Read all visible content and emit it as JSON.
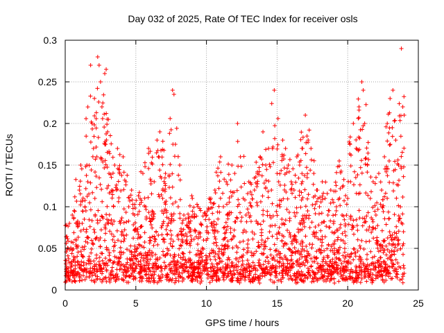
{
  "chart_data": {
    "type": "scatter",
    "title": "Day 032 of 2025, Rate Of TEC Index for receiver osls",
    "xlabel": "GPS time / hours",
    "ylabel": "ROTI / TECUs",
    "xlim": [
      0,
      25
    ],
    "ylim": [
      0,
      0.3
    ],
    "xticks": [
      0,
      5,
      10,
      15,
      20,
      25
    ],
    "yticks": [
      0,
      0.05,
      0.1,
      0.15,
      0.2,
      0.25,
      0.3
    ],
    "x_tick_labels": [
      "0",
      "5",
      "10",
      "15",
      "20",
      "25"
    ],
    "y_tick_labels": [
      "0",
      "0.05",
      "0.1",
      "0.15",
      "0.2",
      "0.25",
      "0.3"
    ],
    "grid": true,
    "marker": "plus",
    "color": "#ff0000",
    "series": [
      {
        "points": [
          [
            0.1,
            0.02
          ],
          [
            0.2,
            0.05
          ],
          [
            0.3,
            0.08
          ],
          [
            0.4,
            0.03
          ],
          [
            0.5,
            0.09
          ],
          [
            0.6,
            0.04
          ],
          [
            0.8,
            0.06
          ],
          [
            1.0,
            0.12
          ],
          [
            1.1,
            0.15
          ],
          [
            1.2,
            0.08
          ],
          [
            1.4,
            0.1
          ],
          [
            1.6,
            0.13
          ],
          [
            1.8,
            0.27
          ],
          [
            1.9,
            0.2
          ],
          [
            2.0,
            0.17
          ],
          [
            2.1,
            0.11
          ],
          [
            2.3,
            0.28
          ],
          [
            2.4,
            0.27
          ],
          [
            2.5,
            0.25
          ],
          [
            2.6,
            0.22
          ],
          [
            2.8,
            0.26
          ],
          [
            2.9,
            0.265
          ],
          [
            3.0,
            0.19
          ],
          [
            3.1,
            0.14
          ],
          [
            3.3,
            0.12
          ],
          [
            3.5,
            0.15
          ],
          [
            3.7,
            0.17
          ],
          [
            3.9,
            0.08
          ],
          [
            4.1,
            0.16
          ],
          [
            4.3,
            0.13
          ],
          [
            4.5,
            0.1
          ],
          [
            4.7,
            0.12
          ],
          [
            4.9,
            0.09
          ],
          [
            5.1,
            0.07
          ],
          [
            5.3,
            0.11
          ],
          [
            5.5,
            0.14
          ],
          [
            5.7,
            0.1
          ],
          [
            5.9,
            0.17
          ],
          [
            6.1,
            0.09
          ],
          [
            6.3,
            0.13
          ],
          [
            6.5,
            0.18
          ],
          [
            6.7,
            0.19
          ],
          [
            6.9,
            0.11
          ],
          [
            7.1,
            0.14
          ],
          [
            7.3,
            0.08
          ],
          [
            7.6,
            0.24
          ],
          [
            7.7,
            0.235
          ],
          [
            7.8,
            0.175
          ],
          [
            8.0,
            0.1
          ],
          [
            8.2,
            0.07
          ],
          [
            8.4,
            0.09
          ],
          [
            8.6,
            0.06
          ],
          [
            8.8,
            0.08
          ],
          [
            9.0,
            0.11
          ],
          [
            9.2,
            0.07
          ],
          [
            9.4,
            0.1
          ],
          [
            9.6,
            0.08
          ],
          [
            9.8,
            0.06
          ],
          [
            10.0,
            0.09
          ],
          [
            10.2,
            0.11
          ],
          [
            10.4,
            0.08
          ],
          [
            10.6,
            0.12
          ],
          [
            10.8,
            0.07
          ],
          [
            11.0,
            0.16
          ],
          [
            11.2,
            0.1
          ],
          [
            11.4,
            0.13
          ],
          [
            11.6,
            0.09
          ],
          [
            11.8,
            0.15
          ],
          [
            12.0,
            0.14
          ],
          [
            12.2,
            0.2
          ],
          [
            12.4,
            0.16
          ],
          [
            12.6,
            0.11
          ],
          [
            12.8,
            0.09
          ],
          [
            13.0,
            0.13
          ],
          [
            13.2,
            0.1
          ],
          [
            13.4,
            0.12
          ],
          [
            13.6,
            0.14
          ],
          [
            13.8,
            0.16
          ],
          [
            14.0,
            0.19
          ],
          [
            14.2,
            0.15
          ],
          [
            14.4,
            0.17
          ],
          [
            14.6,
            0.12
          ],
          [
            14.8,
            0.24
          ],
          [
            15.0,
            0.14
          ],
          [
            15.2,
            0.1
          ],
          [
            15.4,
            0.18
          ],
          [
            15.6,
            0.17
          ],
          [
            15.8,
            0.15
          ],
          [
            16.0,
            0.13
          ],
          [
            16.2,
            0.12
          ],
          [
            16.4,
            0.16
          ],
          [
            16.6,
            0.15
          ],
          [
            16.8,
            0.17
          ],
          [
            17.0,
            0.21
          ],
          [
            17.2,
            0.18
          ],
          [
            17.4,
            0.17
          ],
          [
            17.6,
            0.14
          ],
          [
            17.8,
            0.12
          ],
          [
            18.0,
            0.1
          ],
          [
            18.2,
            0.13
          ],
          [
            18.4,
            0.11
          ],
          [
            18.6,
            0.09
          ],
          [
            18.8,
            0.12
          ],
          [
            19.0,
            0.08
          ],
          [
            19.2,
            0.1
          ],
          [
            19.4,
            0.155
          ],
          [
            19.6,
            0.09
          ],
          [
            19.8,
            0.07
          ],
          [
            20.0,
            0.11
          ],
          [
            20.2,
            0.13
          ],
          [
            20.4,
            0.2
          ],
          [
            20.6,
            0.17
          ],
          [
            20.8,
            0.22
          ],
          [
            21.0,
            0.25
          ],
          [
            21.1,
            0.24
          ],
          [
            21.2,
            0.2
          ],
          [
            21.4,
            0.15
          ],
          [
            21.6,
            0.11
          ],
          [
            21.8,
            0.13
          ],
          [
            22.0,
            0.09
          ],
          [
            22.2,
            0.14
          ],
          [
            22.4,
            0.12
          ],
          [
            22.6,
            0.16
          ],
          [
            22.8,
            0.2
          ],
          [
            23.0,
            0.23
          ],
          [
            23.2,
            0.24
          ],
          [
            23.4,
            0.18
          ],
          [
            23.6,
            0.15
          ],
          [
            23.8,
            0.29
          ],
          [
            23.9,
            0.22
          ],
          [
            24.0,
            0.21
          ],
          [
            23.95,
            0.07
          ],
          [
            0.05,
            0.01
          ],
          [
            24.0,
            0.02
          ]
        ]
      }
    ]
  }
}
